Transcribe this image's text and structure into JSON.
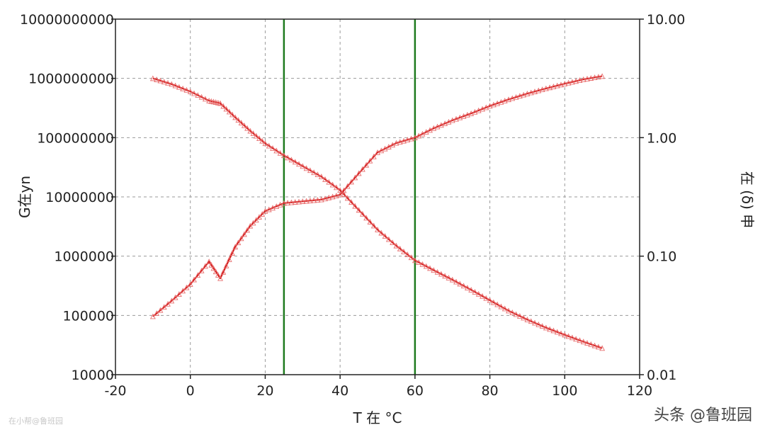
{
  "chart_data": {
    "type": "line",
    "title": "",
    "xlabel": "T 在 °C",
    "ylabel_left": "G在yn",
    "ylabel_right": "在 (δ) 申",
    "xlim": [
      -20,
      120
    ],
    "ylim_left": [
      10000,
      10000000000
    ],
    "ylim_right": [
      0.01,
      10
    ],
    "yscale_left": "log",
    "yscale_right": "log",
    "grid": true,
    "x_ticks": [
      "-20",
      "0",
      "20",
      "40",
      "60",
      "80",
      "100",
      "120"
    ],
    "y_ticks_left": [
      "10000000000",
      "1000000000",
      "100000000",
      "10000000",
      "1000000",
      "100000",
      "10000"
    ],
    "y_ticks_right": [
      "10.00",
      "1.00",
      "0.10",
      "0.01"
    ],
    "vertical_lines": [
      25,
      60
    ],
    "series": [
      {
        "axis": "left",
        "color": "#d42020",
        "x": [
          -10,
          -5,
          0,
          5,
          8,
          12,
          16,
          20,
          25,
          30,
          35,
          40,
          45,
          50,
          55,
          60,
          65,
          70,
          75,
          80,
          85,
          90,
          95,
          100,
          105,
          110
        ],
        "y": [
          1000000000,
          800000000,
          600000000,
          420000000,
          380000000,
          220000000,
          130000000,
          80000000,
          50000000,
          33000000,
          22000000,
          13000000,
          6000000,
          2800000,
          1500000,
          850000,
          580000,
          400000,
          270000,
          180000,
          120000,
          85000,
          62000,
          47000,
          36000,
          28000
        ]
      },
      {
        "axis": "right",
        "color": "#d42020",
        "x": [
          -10,
          -5,
          0,
          5,
          8,
          12,
          16,
          20,
          25,
          30,
          35,
          40,
          45,
          50,
          55,
          60,
          65,
          70,
          75,
          80,
          85,
          90,
          95,
          100,
          105,
          110
        ],
        "y": [
          0.031,
          0.042,
          0.058,
          0.09,
          0.065,
          0.12,
          0.18,
          0.24,
          0.28,
          0.29,
          0.3,
          0.33,
          0.5,
          0.75,
          0.9,
          1.0,
          1.2,
          1.4,
          1.6,
          1.85,
          2.1,
          2.35,
          2.6,
          2.85,
          3.1,
          3.3
        ]
      }
    ]
  },
  "watermarks": {
    "left": "在小帮@鲁班园",
    "right": "头条 @鲁班园"
  }
}
